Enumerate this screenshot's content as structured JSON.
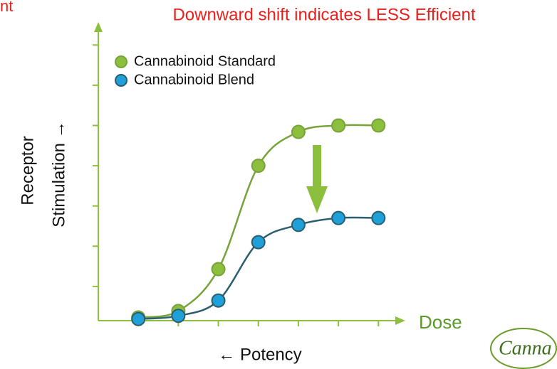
{
  "chart_data": {
    "type": "line",
    "title": "Downward shift indicates LESS Efficient",
    "corner_text": "nt",
    "y_label": [
      "Receptor",
      "Stimulation →"
    ],
    "x_label": "Dose",
    "x_sublabel": "← Potency",
    "logo": "Canna",
    "x": [
      1,
      2,
      3,
      4,
      5,
      6,
      7
    ],
    "series": [
      {
        "name": "Cannabinoid Standard",
        "color": "#8dbf3f",
        "line_color": "#78a33a",
        "values": [
          0.23,
          0.39,
          1.43,
          4.0,
          4.84,
          5.0,
          5.0
        ]
      },
      {
        "name": "Cannabinoid Blend",
        "color": "#1fa0d8",
        "line_color": "#2b5f6e",
        "values": [
          0.19,
          0.27,
          0.65,
          2.1,
          2.53,
          2.7,
          2.7
        ]
      }
    ],
    "xlim": [
      0,
      7.6
    ],
    "ylim": [
      0.15,
      7.5
    ],
    "xticks": [
      1,
      2,
      3,
      4,
      5,
      6,
      7
    ],
    "yticks": [
      1,
      2,
      3,
      4,
      5,
      6,
      7
    ],
    "axis_color": "#8dbf3f",
    "title_color": "#e8201c"
  }
}
